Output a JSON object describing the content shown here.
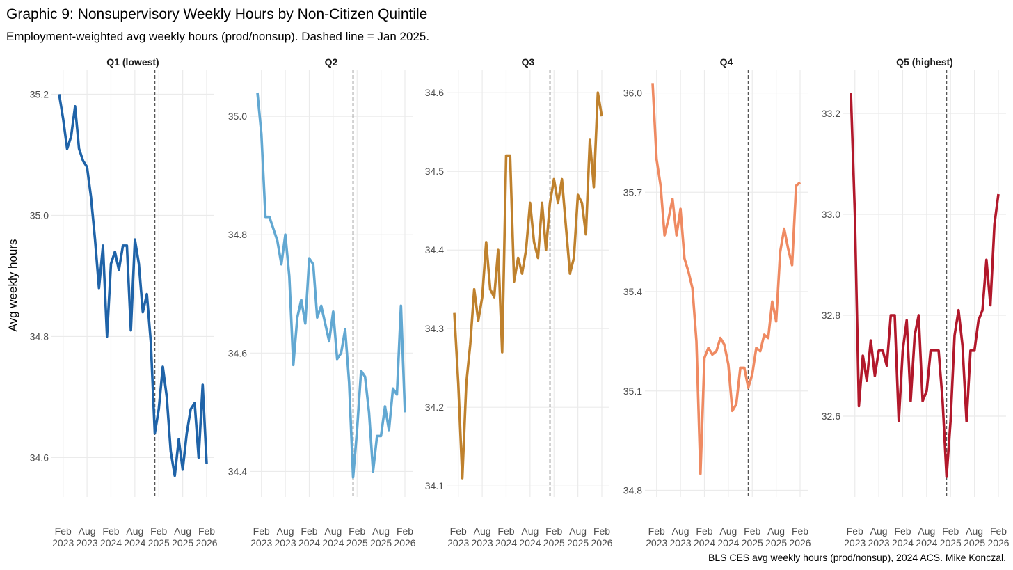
{
  "chart_data": {
    "type": "line",
    "title": "Graphic 9: Nonsupervisory Weekly Hours by Non-Citizen Quintile",
    "subtitle": "Employment-weighted avg weekly hours (prod/nonsup). Dashed line = Jan 2025.",
    "ylabel": "Avg weekly hours",
    "xlabel": "",
    "caption": "BLS CES avg weekly hours (prod/nonsup), 2024 ACS. Mike Konczal.",
    "grid": true,
    "reference_line": "2025-01",
    "x_start": "2023-01",
    "x_end": "2026-02",
    "x_tick_labels": [
      {
        "month": "Feb",
        "year": "2023",
        "index": 1
      },
      {
        "month": "Aug",
        "year": "2023",
        "index": 7
      },
      {
        "month": "Feb",
        "year": "2024",
        "index": 13
      },
      {
        "month": "Aug",
        "year": "2024",
        "index": 19
      },
      {
        "month": "Feb",
        "year": "2025",
        "index": 25
      },
      {
        "month": "Aug",
        "year": "2025",
        "index": 31
      },
      {
        "month": "Feb",
        "year": "2026",
        "index": 37
      }
    ],
    "panels": [
      {
        "name": "Q1 (lowest)",
        "color": "#1f63a8",
        "ylim": [
          34.535,
          35.235
        ],
        "yticks": [
          {
            "v": 34.6,
            "label": "34.6"
          },
          {
            "v": 34.8,
            "label": "34.8"
          },
          {
            "v": 35.0,
            "label": "35.0"
          },
          {
            "v": 35.2,
            "label": "35.2"
          }
        ],
        "values": [
          35.2,
          35.16,
          35.11,
          35.13,
          35.18,
          35.11,
          35.09,
          35.08,
          35.03,
          34.96,
          34.88,
          34.95,
          34.8,
          34.92,
          34.94,
          34.91,
          34.95,
          34.95,
          34.81,
          34.96,
          34.92,
          34.84,
          34.87,
          34.79,
          34.64,
          34.68,
          34.75,
          34.7,
          34.61,
          34.57,
          34.63,
          34.58,
          34.64,
          34.68,
          34.69,
          34.6,
          34.72,
          34.59
        ]
      },
      {
        "name": "Q2",
        "color": "#62a8d2",
        "ylim": [
          34.357,
          35.073
        ],
        "yticks": [
          {
            "v": 34.4,
            "label": "34.4"
          },
          {
            "v": 34.6,
            "label": "34.6"
          },
          {
            "v": 34.8,
            "label": "34.8"
          },
          {
            "v": 35.0,
            "label": "35.0"
          }
        ],
        "values": [
          35.04,
          34.97,
          34.83,
          34.83,
          34.81,
          34.79,
          34.75,
          34.8,
          34.73,
          34.58,
          34.66,
          34.69,
          34.65,
          34.76,
          34.75,
          34.66,
          34.68,
          34.65,
          34.62,
          34.67,
          34.59,
          34.6,
          34.64,
          34.55,
          34.39,
          34.47,
          34.57,
          34.56,
          34.5,
          34.4,
          34.46,
          34.46,
          34.51,
          34.47,
          34.54,
          34.53,
          34.68,
          34.5
        ]
      },
      {
        "name": "Q3",
        "color": "#bf812d",
        "ylim": [
          34.086,
          34.625
        ],
        "yticks": [
          {
            "v": 34.1,
            "label": "34.1"
          },
          {
            "v": 34.2,
            "label": "34.2"
          },
          {
            "v": 34.3,
            "label": "34.3"
          },
          {
            "v": 34.4,
            "label": "34.4"
          },
          {
            "v": 34.5,
            "label": "34.5"
          },
          {
            "v": 34.6,
            "label": "34.6"
          }
        ],
        "values": [
          34.32,
          34.23,
          34.11,
          34.23,
          34.28,
          34.35,
          34.31,
          34.34,
          34.41,
          34.35,
          34.34,
          34.4,
          34.27,
          34.52,
          34.52,
          34.36,
          34.39,
          34.37,
          34.4,
          34.46,
          34.41,
          34.39,
          34.46,
          34.4,
          34.46,
          34.49,
          34.46,
          34.49,
          34.43,
          34.37,
          34.39,
          34.47,
          34.46,
          34.42,
          34.54,
          34.48,
          34.6,
          34.57
        ]
      },
      {
        "name": "Q4",
        "color": "#ef8a62",
        "ylim": [
          34.78,
          36.06
        ],
        "yticks": [
          {
            "v": 34.8,
            "label": "34.8"
          },
          {
            "v": 35.1,
            "label": "35.1"
          },
          {
            "v": 35.4,
            "label": "35.4"
          },
          {
            "v": 35.7,
            "label": "35.7"
          },
          {
            "v": 36.0,
            "label": "36.0"
          }
        ],
        "values": [
          36.03,
          35.8,
          35.72,
          35.57,
          35.62,
          35.68,
          35.57,
          35.65,
          35.5,
          35.46,
          35.41,
          35.25,
          34.85,
          35.2,
          35.23,
          35.21,
          35.22,
          35.26,
          35.24,
          35.18,
          35.04,
          35.06,
          35.17,
          35.17,
          35.11,
          35.15,
          35.23,
          35.22,
          35.27,
          35.26,
          35.37,
          35.31,
          35.52,
          35.59,
          35.53,
          35.48,
          35.72,
          35.73
        ]
      },
      {
        "name": "Q5 (highest)",
        "color": "#b2182b",
        "ylim": [
          32.44,
          33.28
        ],
        "yticks": [
          {
            "v": 32.6,
            "label": "32.6"
          },
          {
            "v": 32.8,
            "label": "32.8"
          },
          {
            "v": 33.0,
            "label": "33.0"
          },
          {
            "v": 33.2,
            "label": "33.2"
          }
        ],
        "values": [
          33.24,
          33.0,
          32.62,
          32.72,
          32.67,
          32.75,
          32.68,
          32.73,
          32.73,
          32.7,
          32.8,
          32.8,
          32.59,
          32.73,
          32.79,
          32.63,
          32.76,
          32.8,
          32.63,
          32.65,
          32.73,
          32.73,
          32.73,
          32.63,
          32.48,
          32.59,
          32.76,
          32.81,
          32.74,
          32.59,
          32.73,
          32.73,
          32.79,
          32.81,
          32.91,
          32.82,
          32.98,
          33.04
        ]
      }
    ]
  }
}
